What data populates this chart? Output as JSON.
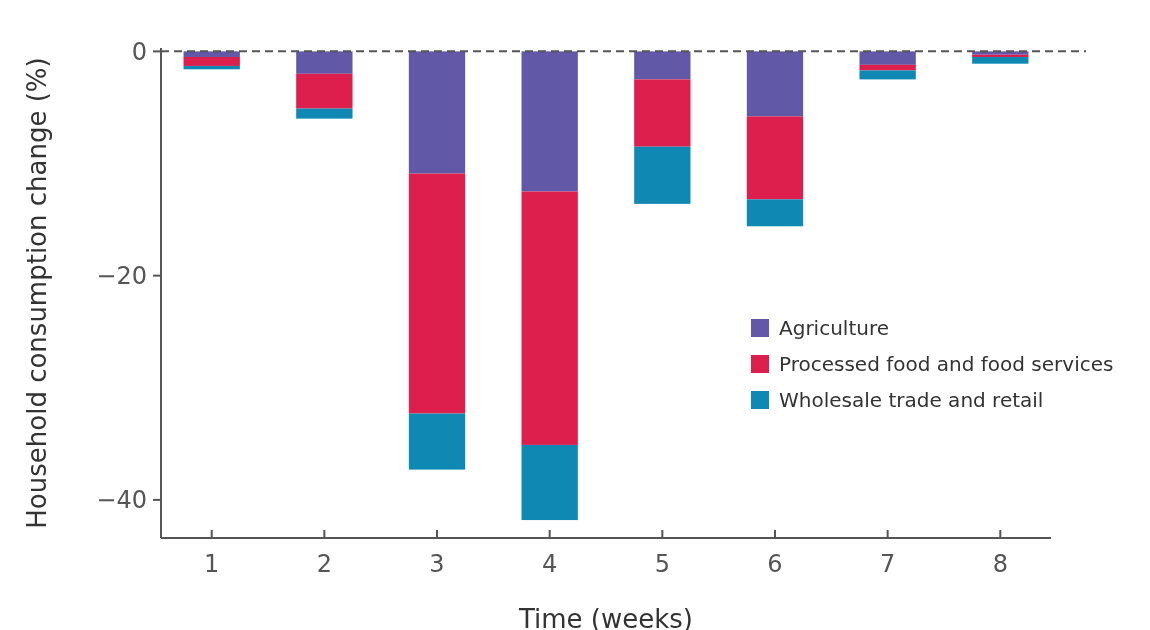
{
  "chart_data": {
    "type": "bar",
    "stacked": true,
    "xlabel": "Time (weeks)",
    "ylabel": "Household consumption change (%)",
    "categories": [
      "1",
      "2",
      "3",
      "4",
      "5",
      "6",
      "7",
      "8"
    ],
    "series": [
      {
        "name": "Agriculture",
        "color": "#6159a8",
        "values": [
          -0.5,
          -2.0,
          -10.9,
          -12.5,
          -2.5,
          -5.8,
          -1.2,
          -0.3
        ]
      },
      {
        "name": "Processed food and food services",
        "color": "#dc1f4d",
        "values": [
          -0.8,
          -3.1,
          -21.4,
          -22.6,
          -6.0,
          -7.4,
          -0.5,
          -0.2
        ]
      },
      {
        "name": "Wholesale trade and retail",
        "color": "#0f89b4",
        "values": [
          -0.3,
          -0.9,
          -5.0,
          -6.7,
          -5.1,
          -2.4,
          -0.8,
          -0.6
        ]
      }
    ],
    "ylim": [
      -43.4,
      0.3
    ],
    "yticks": [
      0,
      -20,
      -40
    ],
    "ref_lines": [
      {
        "axis": "y",
        "value": 0,
        "line_style": "dashed",
        "color": "#555555"
      }
    ],
    "grid": false,
    "legend": "right"
  }
}
